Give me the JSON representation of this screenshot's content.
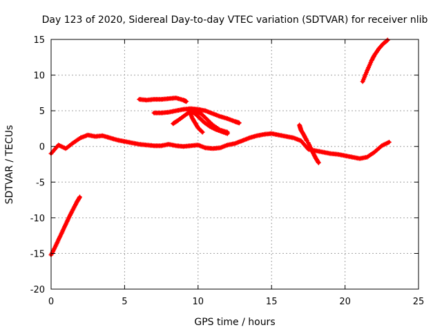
{
  "chart_data": {
    "type": "scatter",
    "title": "Day 123 of 2020, Sidereal Day-to-day VTEC variation (SDTVAR) for receiver nlib",
    "xlabel": "GPS time / hours",
    "ylabel": "SDTVAR / TECUs",
    "xlim": [
      0,
      25
    ],
    "ylim": [
      -20,
      15
    ],
    "xticks": [
      0,
      5,
      10,
      15,
      20,
      25
    ],
    "yticks": [
      -20,
      -15,
      -10,
      -5,
      0,
      5,
      10,
      15
    ],
    "xtick_labels": [
      "0",
      "5",
      "10",
      "15",
      "20",
      "25"
    ],
    "ytick_labels": [
      "-20",
      "-15",
      "-10",
      "-5",
      "0",
      "5",
      "10",
      "15"
    ],
    "grid": true,
    "marker": "+",
    "color": "#ff0000",
    "series": [
      {
        "name": "main-band",
        "x": [
          0,
          0.5,
          1,
          1.5,
          2,
          2.5,
          3,
          3.5,
          4,
          4.5,
          5,
          5.5,
          6,
          6.5,
          7,
          7.5,
          8,
          8.5,
          9,
          9.5,
          10,
          10.5,
          11,
          11.5,
          12,
          12.5,
          13,
          13.5,
          14,
          14.5,
          15,
          15.5,
          16,
          16.5,
          17,
          17.5,
          18,
          18.5,
          19,
          19.5,
          20,
          20.5,
          21,
          21.5,
          22,
          22.5,
          23
        ],
        "y": [
          -1,
          0.2,
          -0.3,
          0.5,
          1.2,
          1.6,
          1.4,
          1.5,
          1.2,
          0.9,
          0.7,
          0.5,
          0.3,
          0.2,
          0.1,
          0.1,
          0.3,
          0.1,
          0,
          0.1,
          0.2,
          -0.2,
          -0.3,
          -0.2,
          0.2,
          0.4,
          0.8,
          1.2,
          1.5,
          1.7,
          1.8,
          1.6,
          1.4,
          1.2,
          0.8,
          -0.4,
          -0.6,
          -0.8,
          -1.0,
          -1.1,
          -1.3,
          -1.5,
          -1.7,
          -1.5,
          -0.8,
          0.1,
          0.6
        ]
      },
      {
        "name": "segment-1",
        "x": [
          0,
          0.25,
          0.5,
          0.75,
          1,
          1.25,
          1.5,
          1.75,
          1.95
        ],
        "y": [
          -15.2,
          -14.2,
          -13.1,
          -12,
          -10.9,
          -9.8,
          -8.8,
          -7.8,
          -7.1
        ]
      },
      {
        "name": "segment-2",
        "x": [
          21.2,
          21.5,
          21.8,
          22,
          22.3,
          22.6,
          22.9
        ],
        "y": [
          9.1,
          10.6,
          12,
          12.8,
          13.7,
          14.4,
          14.9
        ]
      },
      {
        "name": "segment-3",
        "x": [
          6,
          6.5,
          7,
          7.5,
          8,
          8.5,
          9,
          9.2
        ],
        "y": [
          6.6,
          6.5,
          6.6,
          6.6,
          6.7,
          6.8,
          6.5,
          6.3
        ]
      },
      {
        "name": "segment-4",
        "x": [
          7,
          7.5,
          8,
          8.5,
          9,
          9.5,
          10,
          10.5,
          11,
          11.5,
          12,
          12.5,
          12.8
        ],
        "y": [
          4.7,
          4.7,
          4.8,
          5.0,
          5.2,
          5.3,
          5.2,
          5.0,
          4.6,
          4.2,
          3.9,
          3.5,
          3.3
        ]
      },
      {
        "name": "segment-5",
        "x": [
          8.3,
          8.6,
          9,
          9.4,
          9.8,
          10.2,
          10.6,
          11,
          11.5,
          12
        ],
        "y": [
          3.2,
          3.6,
          4.2,
          4.8,
          5.0,
          4.6,
          3.8,
          3.0,
          2.3,
          2.0
        ]
      },
      {
        "name": "segment-6",
        "x": [
          9.5,
          9.8,
          10.1,
          10.4,
          10.8,
          11.2,
          11.6,
          12
        ],
        "y": [
          5.0,
          4.6,
          4.0,
          3.4,
          2.8,
          2.4,
          2.1,
          1.8
        ]
      },
      {
        "name": "segment-7",
        "x": [
          9.4,
          9.6,
          9.8,
          10.0,
          10.3
        ],
        "y": [
          5.0,
          4.0,
          3.3,
          2.6,
          2.0
        ]
      },
      {
        "name": "segment-8",
        "x": [
          16.9,
          17.0,
          17.2,
          17.4
        ],
        "y": [
          3.0,
          2.3,
          1.6,
          0.8
        ]
      },
      {
        "name": "segment-9",
        "x": [
          17.5,
          17.8,
          18.0,
          18.2
        ],
        "y": [
          0.5,
          -0.8,
          -1.6,
          -2.3
        ]
      }
    ]
  }
}
